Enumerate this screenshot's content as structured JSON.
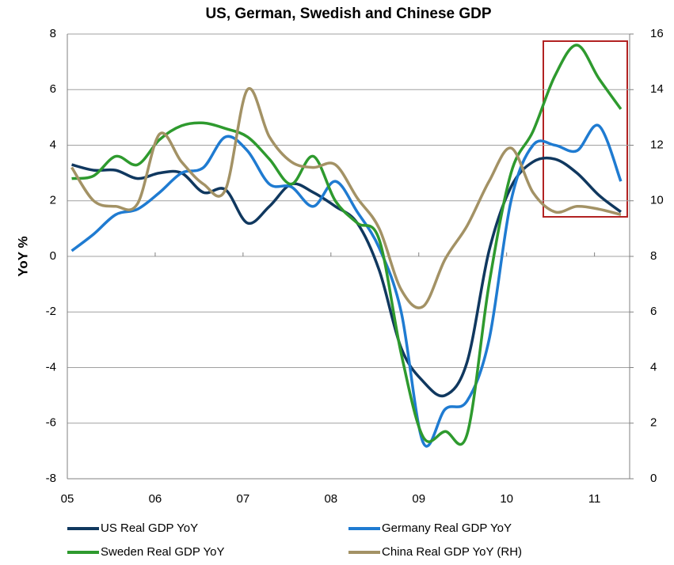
{
  "chart_data": {
    "type": "line",
    "title": "US, German, Swedish and Chinese GDP",
    "y_label": "YoY %",
    "x": [
      2005.05,
      2005.3,
      2005.55,
      2005.8,
      2006.05,
      2006.3,
      2006.55,
      2006.8,
      2007.05,
      2007.3,
      2007.55,
      2007.8,
      2008.05,
      2008.3,
      2008.55,
      2008.8,
      2009.05,
      2009.3,
      2009.55,
      2009.8,
      2010.05,
      2010.3,
      2010.55,
      2010.8,
      2011.05,
      2011.3
    ],
    "series": [
      {
        "name": "US Real GDP YoY",
        "color": "#10385f",
        "values": [
          3.3,
          3.1,
          3.1,
          2.8,
          3.0,
          3.0,
          2.3,
          2.4,
          1.2,
          1.8,
          2.6,
          2.3,
          1.8,
          1.2,
          -0.5,
          -3.3,
          -4.5,
          -5.0,
          -3.8,
          0.2,
          2.5,
          3.4,
          3.5,
          3.0,
          2.2,
          1.6
        ]
      },
      {
        "name": "Germany Real GDP YoY",
        "color": "#1f7bd1",
        "values": [
          0.2,
          0.8,
          1.5,
          1.7,
          2.3,
          3.0,
          3.2,
          4.3,
          3.8,
          2.6,
          2.5,
          1.8,
          2.7,
          1.6,
          0.3,
          -2.0,
          -6.7,
          -5.5,
          -5.2,
          -3.0,
          2.0,
          4.0,
          4.0,
          3.8,
          4.7,
          2.7
        ]
      },
      {
        "name": "Sweden Real GDP YoY",
        "color": "#2e9a2e",
        "values": [
          2.8,
          2.9,
          3.6,
          3.3,
          4.2,
          4.7,
          4.8,
          4.6,
          4.3,
          3.5,
          2.6,
          3.6,
          2.0,
          1.2,
          0.6,
          -3.5,
          -6.5,
          -6.3,
          -6.4,
          -1.0,
          3.0,
          4.5,
          6.5,
          7.6,
          6.4,
          5.3
        ]
      },
      {
        "name": "China Real GDP YoY (RH)",
        "color": "#a39265",
        "axis": "y2",
        "values": [
          11.2,
          10.0,
          9.8,
          9.9,
          12.4,
          11.4,
          10.6,
          10.4,
          14.0,
          12.3,
          11.4,
          11.2,
          11.3,
          10.1,
          9.0,
          6.8,
          6.2,
          7.9,
          9.1,
          10.7,
          11.9,
          10.3,
          9.6,
          9.8,
          9.7,
          9.5
        ]
      }
    ],
    "xlim": [
      2005,
      2011.4
    ],
    "xticks": [
      {
        "value": 2005,
        "label": "05"
      },
      {
        "value": 2006,
        "label": "06"
      },
      {
        "value": 2007,
        "label": "07"
      },
      {
        "value": 2008,
        "label": "08"
      },
      {
        "value": 2009,
        "label": "09"
      },
      {
        "value": 2010,
        "label": "10"
      },
      {
        "value": 2011,
        "label": "11"
      }
    ],
    "ylim": [
      -8,
      8
    ],
    "yticks": [
      -8,
      -6,
      -4,
      -2,
      0,
      2,
      4,
      6,
      8
    ],
    "y2lim": [
      0,
      16
    ],
    "y2ticks": [
      0,
      2,
      4,
      6,
      8,
      10,
      12,
      14,
      16
    ],
    "grid": true,
    "legend": "bottom"
  }
}
